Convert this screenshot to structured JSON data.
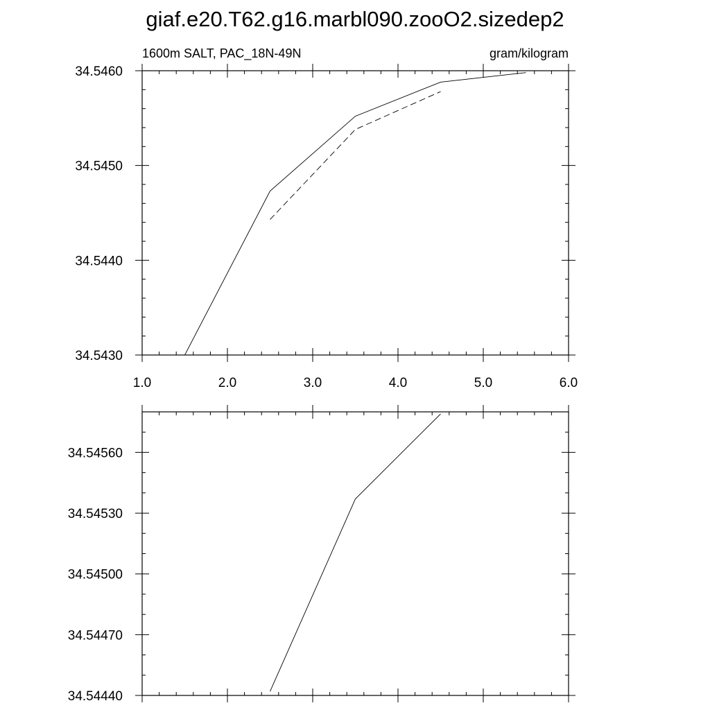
{
  "chart_data": [
    {
      "type": "line",
      "title": "giaf.e20.T62.g16.marbl090.zooO2.sizedep2",
      "left_title": "1600m SALT, PAC_18N-49N",
      "right_title": "gram/kilogram",
      "xlim": [
        1.0,
        6.0
      ],
      "ylim": [
        34.543,
        34.546
      ],
      "x_ticks": [
        1.0,
        2.0,
        3.0,
        4.0,
        5.0,
        6.0
      ],
      "x_tick_labels": [
        "1.0",
        "2.0",
        "3.0",
        "4.0",
        "5.0",
        "6.0"
      ],
      "y_ticks": [
        34.543,
        34.544,
        34.545,
        34.546
      ],
      "y_tick_labels": [
        "34.5430",
        "34.5440",
        "34.5450",
        "34.5460"
      ],
      "series": [
        {
          "style": "solid",
          "x": [
            1.5,
            2.5,
            3.5,
            4.5,
            5.5
          ],
          "y": [
            34.543,
            34.54473,
            34.54552,
            34.54588,
            34.54598
          ]
        },
        {
          "style": "dashed",
          "x": [
            2.5,
            3.5,
            4.5
          ],
          "y": [
            34.54443,
            34.54538,
            34.54578
          ]
        }
      ]
    },
    {
      "type": "line",
      "xlim": [
        1.0,
        6.0
      ],
      "ylim": [
        34.5444,
        34.5458
      ],
      "x_ticks": [
        1.0,
        2.0,
        3.0,
        4.0,
        5.0,
        6.0
      ],
      "y_ticks": [
        34.5444,
        34.5447,
        34.545,
        34.5453,
        34.5456
      ],
      "y_tick_labels": [
        "34.54440",
        "34.54470",
        "34.54500",
        "34.54530",
        "34.54560"
      ],
      "series": [
        {
          "style": "solid",
          "x": [
            2.5,
            3.5,
            4.5
          ],
          "y": [
            34.54442,
            34.54537,
            34.54579
          ]
        }
      ]
    }
  ]
}
